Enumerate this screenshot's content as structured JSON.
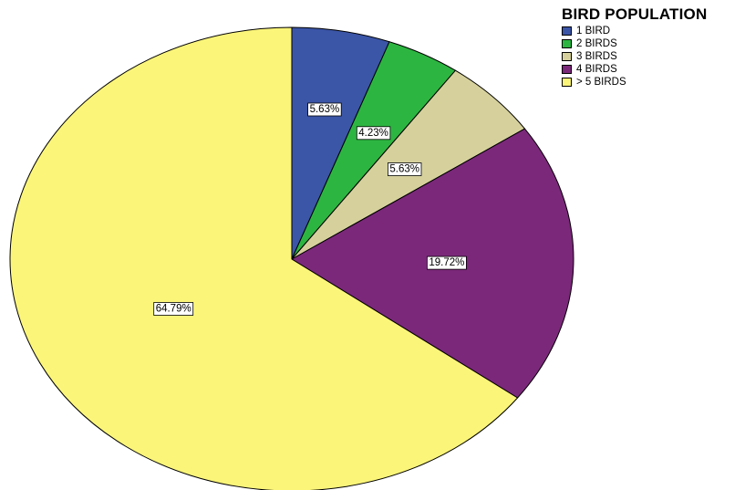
{
  "chart_data": {
    "type": "pie",
    "title": "BIRD POPULATION",
    "legend_position": "top-right",
    "slices": [
      {
        "label": "1 BIRD",
        "value": 5.63,
        "data_label": "5.63%",
        "color": "#3b55a7"
      },
      {
        "label": "2 BIRDS",
        "value": 4.23,
        "data_label": "4.23%",
        "color": "#2db541"
      },
      {
        "label": "3 BIRDS",
        "value": 5.63,
        "data_label": "5.63%",
        "color": "#d6d19c"
      },
      {
        "label": "4 BIRDS",
        "value": 19.72,
        "data_label": "19.72%",
        "color": "#7b287a"
      },
      {
        "label": "> 5 BIRDS",
        "value": 64.79,
        "data_label": "64.79%",
        "color": "#fbf57a"
      }
    ]
  }
}
